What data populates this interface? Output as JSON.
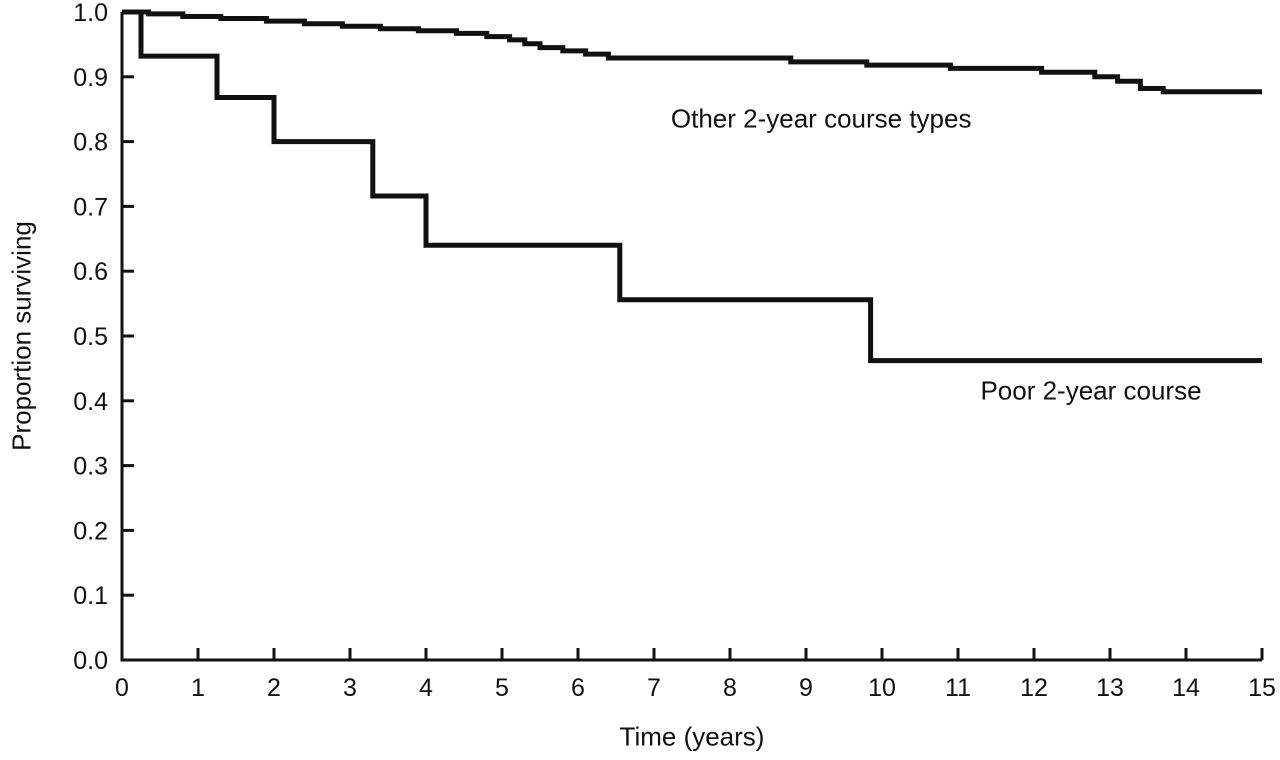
{
  "figure": {
    "background": "#ffffff",
    "ink_color": "#111111"
  },
  "chart_data": {
    "type": "line",
    "variant": "kaplan-meier-step-survival",
    "title": "",
    "xlabel": "Time (years)",
    "ylabel": "Proportion surviving",
    "xlim": [
      0,
      15
    ],
    "ylim": [
      0,
      1
    ],
    "xticks": [
      0,
      1,
      2,
      3,
      4,
      5,
      6,
      7,
      8,
      9,
      10,
      11,
      12,
      13,
      14,
      15
    ],
    "yticks": [
      0,
      0.1,
      0.2,
      0.3,
      0.4,
      0.5,
      0.6,
      0.7,
      0.8,
      0.9,
      1.0
    ],
    "ytick_labels": [
      "0.0",
      "0.1",
      "0.2",
      "0.3",
      "0.4",
      "0.5",
      "0.6",
      "0.7",
      "0.8",
      "0.9",
      "1.0"
    ],
    "grid": false,
    "legend_position": "inline-annotations",
    "line_width": 5,
    "series": [
      {
        "name": "Other 2-year course types",
        "points": [
          [
            0,
            1.0
          ],
          [
            0.35,
            1.0
          ],
          [
            0.35,
            0.997
          ],
          [
            0.8,
            0.997
          ],
          [
            0.8,
            0.993
          ],
          [
            1.3,
            0.993
          ],
          [
            1.3,
            0.99
          ],
          [
            1.9,
            0.99
          ],
          [
            1.9,
            0.986
          ],
          [
            2.4,
            0.986
          ],
          [
            2.4,
            0.982
          ],
          [
            2.9,
            0.982
          ],
          [
            2.9,
            0.978
          ],
          [
            3.4,
            0.978
          ],
          [
            3.4,
            0.974
          ],
          [
            3.9,
            0.974
          ],
          [
            3.9,
            0.971
          ],
          [
            4.4,
            0.971
          ],
          [
            4.4,
            0.967
          ],
          [
            4.8,
            0.967
          ],
          [
            4.8,
            0.962
          ],
          [
            5.1,
            0.962
          ],
          [
            5.1,
            0.957
          ],
          [
            5.3,
            0.957
          ],
          [
            5.3,
            0.951
          ],
          [
            5.5,
            0.951
          ],
          [
            5.5,
            0.945
          ],
          [
            5.8,
            0.945
          ],
          [
            5.8,
            0.94
          ],
          [
            6.1,
            0.94
          ],
          [
            6.1,
            0.935
          ],
          [
            6.4,
            0.935
          ],
          [
            6.4,
            0.929
          ],
          [
            8.8,
            0.929
          ],
          [
            8.8,
            0.923
          ],
          [
            9.8,
            0.923
          ],
          [
            9.8,
            0.918
          ],
          [
            10.9,
            0.918
          ],
          [
            10.9,
            0.913
          ],
          [
            12.1,
            0.913
          ],
          [
            12.1,
            0.907
          ],
          [
            12.8,
            0.907
          ],
          [
            12.8,
            0.9
          ],
          [
            13.1,
            0.9
          ],
          [
            13.1,
            0.893
          ],
          [
            13.4,
            0.893
          ],
          [
            13.4,
            0.882
          ],
          [
            13.7,
            0.882
          ],
          [
            13.7,
            0.877
          ],
          [
            15,
            0.877
          ]
        ]
      },
      {
        "name": "Poor 2-year course",
        "points": [
          [
            0,
            1.0
          ],
          [
            0.25,
            1.0
          ],
          [
            0.25,
            0.932
          ],
          [
            1.25,
            0.932
          ],
          [
            1.25,
            0.868
          ],
          [
            2.0,
            0.868
          ],
          [
            2.0,
            0.8
          ],
          [
            3.3,
            0.8
          ],
          [
            3.3,
            0.716
          ],
          [
            4.0,
            0.716
          ],
          [
            4.0,
            0.64
          ],
          [
            6.55,
            0.64
          ],
          [
            6.55,
            0.556
          ],
          [
            9.85,
            0.556
          ],
          [
            9.85,
            0.462
          ],
          [
            15,
            0.462
          ]
        ]
      }
    ],
    "annotations": [
      {
        "text": "Other 2-year course types",
        "x": 9.2,
        "y": 0.835
      },
      {
        "text": "Poor 2-year course",
        "x": 12.75,
        "y": 0.415
      }
    ]
  }
}
